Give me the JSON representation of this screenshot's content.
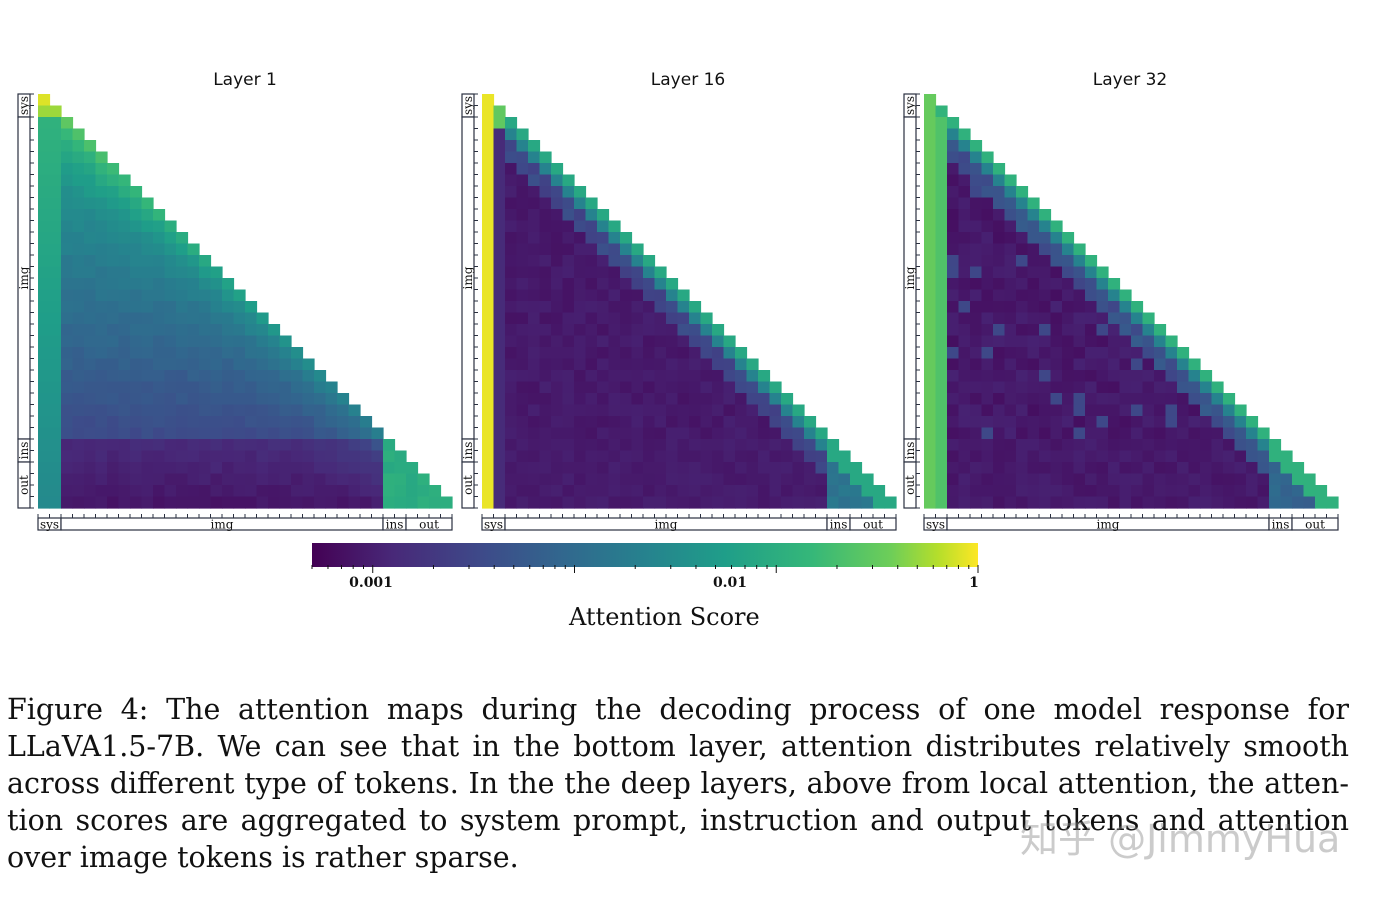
{
  "panels": [
    {
      "title": "Layer 1",
      "axis_labels": {
        "sys": "sys",
        "img": "img",
        "ins": "ins",
        "out": "out"
      }
    },
    {
      "title": "Layer 16",
      "axis_labels": {
        "sys": "sys",
        "img": "img",
        "ins": "ins",
        "out": "out"
      }
    },
    {
      "title": "Layer 32",
      "axis_labels": {
        "sys": "sys",
        "img": "img",
        "ins": "ins",
        "out": "out"
      }
    }
  ],
  "colorbar": {
    "label": "Attention Score",
    "scale": "log",
    "ticks": [
      {
        "value": 0.001,
        "label": "0.001"
      },
      {
        "value": 0.01,
        "label": "0.01"
      },
      {
        "value": 1,
        "label": "1"
      }
    ],
    "colormap": [
      "#440154",
      "#482878",
      "#3e4989",
      "#31688e",
      "#26828e",
      "#1f9e89",
      "#35b779",
      "#6ece58",
      "#b5de2b",
      "#fde725"
    ]
  },
  "caption": {
    "lines": [
      "Figure 4:  The attention maps during the decoding process of one model response for",
      "LLaVA1.5-7B. We can see that in the bottom layer, attention distributes relatively smooth",
      "across different type of tokens. In the the deep layers, above from local attention, the atten-",
      "tion scores are aggregated to system prompt, instruction and output tokens and attention",
      "over image tokens is rather sparse."
    ]
  },
  "watermark": "知乎 @JimmyHua",
  "chart_data": [
    {
      "type": "heatmap",
      "title": "Layer 1",
      "token_groups": [
        "sys",
        "img",
        "ins",
        "out"
      ],
      "pattern": "smooth, lower triangular",
      "color_scale": "log"
    },
    {
      "type": "heatmap",
      "title": "Layer 16",
      "token_groups": [
        "sys",
        "img",
        "ins",
        "out"
      ],
      "pattern": "sys column high, sparse over img",
      "color_scale": "log"
    },
    {
      "type": "heatmap",
      "title": "Layer 32",
      "token_groups": [
        "sys",
        "img",
        "ins",
        "out"
      ],
      "pattern": "sys column high, sparse over img",
      "color_scale": "log"
    }
  ]
}
